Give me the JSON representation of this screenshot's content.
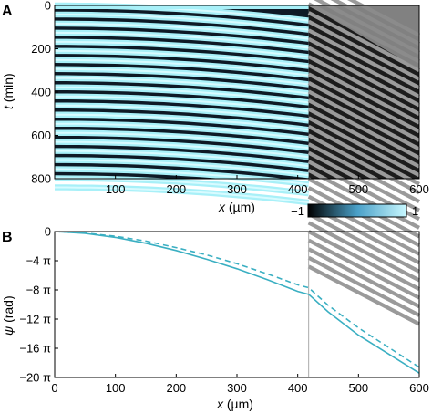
{
  "chart_data": [
    {
      "panel": "A",
      "type": "heatmap",
      "xlabel_var": "x",
      "xlabel_unit": " (µm)",
      "ylabel_var": "t",
      "ylabel_unit": " (min)",
      "xlim": [
        0,
        600
      ],
      "ylim": [
        800,
        0
      ],
      "xticks": [
        100,
        200,
        300,
        400,
        500,
        600
      ],
      "yticks": [
        0,
        200,
        400,
        600,
        800
      ],
      "boundary_x": 418,
      "fringe_period_min": 42,
      "colorbar": {
        "min_label": "−1",
        "max_label": "1",
        "range": [
          -1,
          1
        ]
      },
      "colors": {
        "cyan_max": "#a8f0f8",
        "cyan_mid": "#4aa0c8",
        "dark": "#0e1a26",
        "gray_max": "#d8d8d8",
        "gray_min": "#111111"
      }
    },
    {
      "panel": "B",
      "type": "line",
      "xlabel_var": "x",
      "xlabel_unit": " (µm)",
      "ylabel_var": "ψ",
      "ylabel_unit": " (rad)",
      "xlim": [
        0,
        600
      ],
      "ylim_pi": [
        -20,
        0
      ],
      "xticks": [
        0,
        100,
        200,
        300,
        400,
        500,
        600
      ],
      "yticks": [
        {
          "value_pi": 0,
          "label": "0"
        },
        {
          "value_pi": -4,
          "label": "−4 π"
        },
        {
          "value_pi": -8,
          "label": "−8 π"
        },
        {
          "value_pi": -12,
          "label": "−12 π"
        },
        {
          "value_pi": -16,
          "label": "−16 π"
        },
        {
          "value_pi": -20,
          "label": "−20 π"
        }
      ],
      "vline_x": 418,
      "series": [
        {
          "style": "solid",
          "color": "#3aafc2",
          "x": [
            0,
            50,
            100,
            150,
            200,
            250,
            300,
            350,
            400,
            418,
            450,
            500,
            550,
            600
          ],
          "y_pi": [
            0,
            -0.25,
            -0.8,
            -1.6,
            -2.6,
            -3.8,
            -5.1,
            -6.6,
            -8.2,
            -8.6,
            -11.0,
            -14.2,
            -16.8,
            -19.4
          ]
        },
        {
          "style": "dashed",
          "color": "#3aafc2",
          "x": [
            0,
            50,
            100,
            150,
            200,
            250,
            300,
            350,
            400,
            418,
            450,
            500,
            550,
            600
          ],
          "y_pi": [
            0,
            -0.2,
            -0.65,
            -1.3,
            -2.2,
            -3.2,
            -4.4,
            -5.8,
            -7.3,
            -7.7,
            -10.1,
            -13.2,
            -15.9,
            -18.6
          ]
        }
      ]
    }
  ]
}
